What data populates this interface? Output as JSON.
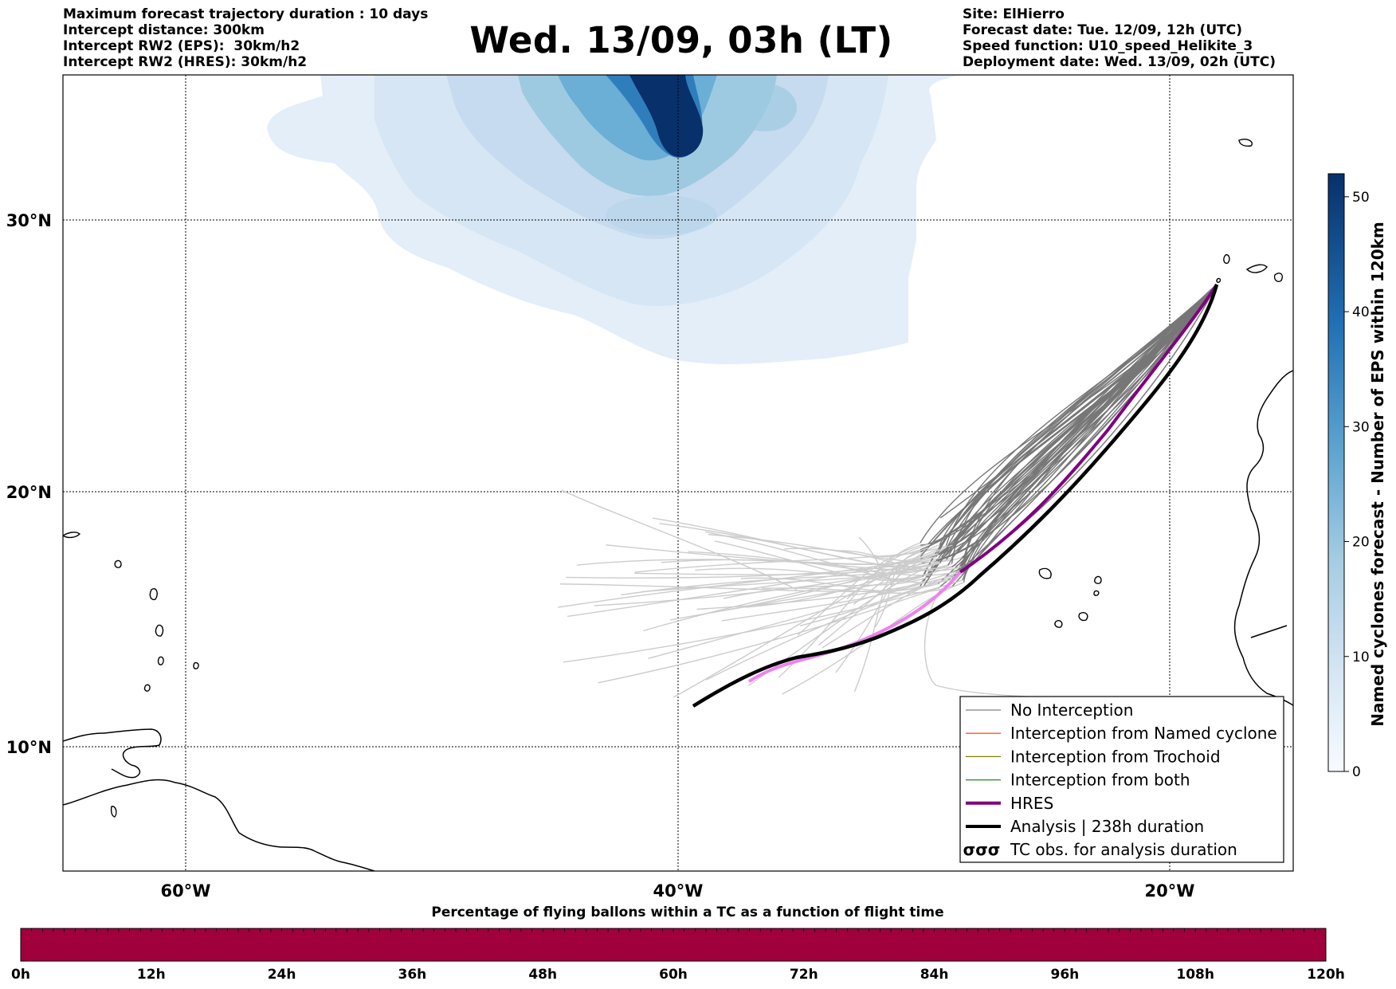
{
  "header": {
    "left_lines": [
      "Maximum forecast trajectory duration : 10 days",
      "Intercept distance: 300km",
      "Intercept RW2 (EPS):  30km/h2",
      "Intercept RW2 (HRES): 30km/h2"
    ],
    "title": "Wed. 13/09, 03h (LT)",
    "right_lines": [
      "Site: ElHierro",
      "Forecast date: Tue. 12/09, 12h (UTC)",
      "Speed function: U10_speed_Helikite_3",
      "Deployment date: Wed. 13/09, 02h (UTC)"
    ]
  },
  "map": {
    "lon_range": [
      -65,
      15
    ],
    "lat_range": [
      5.5,
      35
    ],
    "lon_ticks": [
      "60°W",
      "40°W",
      "20°W"
    ],
    "lat_ticks": [
      "30°N",
      "20°N",
      "10°N"
    ],
    "grid": true
  },
  "colorbar": {
    "label": "Named cyclones forecast - Number of EPS within 120km",
    "ticks": [
      "0",
      "10",
      "20",
      "30",
      "40",
      "50"
    ],
    "min": 0,
    "max": 52,
    "colormap": "Blues"
  },
  "legend": [
    {
      "label": "No Interception",
      "color": "#808080",
      "style": "thin"
    },
    {
      "label": "Interception from Named cyclone",
      "color": "#ff5a1f",
      "style": "thin"
    },
    {
      "label": "Interception from Trochoid",
      "color": "#808000",
      "style": "thin"
    },
    {
      "label": "Interception from both",
      "color": "#228b22",
      "style": "thin"
    },
    {
      "label": "HRES",
      "color": "#800080",
      "style": "thick"
    },
    {
      "label": "Analysis | 238h duration",
      "color": "#000000",
      "style": "thick"
    },
    {
      "label": "TC obs. for analysis duration",
      "color": "#000000",
      "style": "symbol"
    }
  ],
  "bottom_bar": {
    "title": "Percentage of flying ballons within a TC as a function of flight time",
    "ticks": [
      "0h",
      "12h",
      "24h",
      "36h",
      "48h",
      "60h",
      "72h",
      "84h",
      "96h",
      "108h",
      "120h"
    ],
    "color": "#a0003b",
    "percent_in_tc": 0
  },
  "colors": {
    "hres_early": "#ee82ee",
    "hres_late": "#800080",
    "analysis": "#000000",
    "eps_early": "#cccccc",
    "eps_late": "#777777"
  },
  "chart_data": {
    "type": "map",
    "site": "ElHierro",
    "analysis_duration": "238h duration"
  }
}
